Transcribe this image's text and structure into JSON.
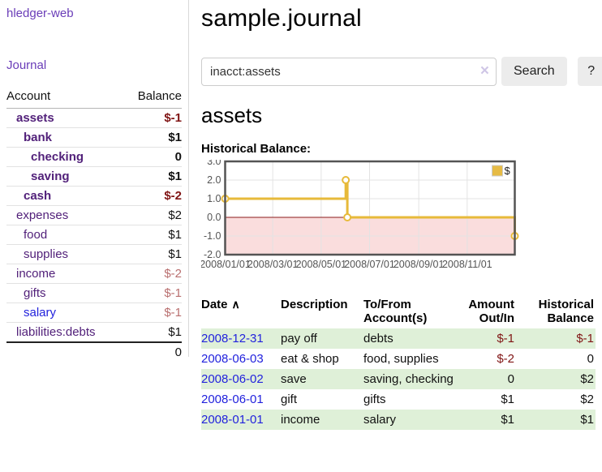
{
  "app": {
    "brand": "hledger-web",
    "nav": {
      "journal_label": "Journal"
    }
  },
  "sidebar": {
    "table_headers": {
      "account": "Account",
      "balance": "Balance"
    },
    "accounts": [
      {
        "name": "assets",
        "depth": 0,
        "bold": true,
        "balance": "$-1",
        "balance_style": "neg-strong"
      },
      {
        "name": "bank",
        "depth": 1,
        "bold": true,
        "balance": "$1",
        "balance_style": "pos"
      },
      {
        "name": "checking",
        "depth": 2,
        "bold": true,
        "balance": "0",
        "balance_style": "pos"
      },
      {
        "name": "saving",
        "depth": 2,
        "bold": true,
        "balance": "$1",
        "balance_style": "pos"
      },
      {
        "name": "cash",
        "depth": 1,
        "bold": true,
        "balance": "$-2",
        "balance_style": "neg-strong"
      },
      {
        "name": "expenses",
        "depth": 0,
        "bold": false,
        "balance": "$2",
        "balance_style": "pos"
      },
      {
        "name": "food",
        "depth": 1,
        "bold": false,
        "balance": "$1",
        "balance_style": "pos"
      },
      {
        "name": "supplies",
        "depth": 1,
        "bold": false,
        "balance": "$1",
        "balance_style": "pos"
      },
      {
        "name": "income",
        "depth": 0,
        "bold": false,
        "balance": "$-2",
        "balance_style": "neg-soft"
      },
      {
        "name": "gifts",
        "depth": 1,
        "bold": false,
        "balance": "$-1",
        "balance_style": "neg-soft"
      },
      {
        "name": "salary",
        "depth": 1,
        "bold": false,
        "balance": "$-1",
        "balance_style": "neg-soft",
        "link_style": "blue"
      },
      {
        "name": "liabilities:debts",
        "depth": 0,
        "bold": false,
        "balance": "$1",
        "balance_style": "pos"
      }
    ],
    "total": "0"
  },
  "main": {
    "title": "sample.journal",
    "search": {
      "value": "inacct:assets",
      "clear_icon": "×",
      "button_label": "Search",
      "help_label": "?"
    },
    "account_heading": "assets",
    "chart_heading": "Historical Balance:"
  },
  "chart_data": {
    "type": "line",
    "step": true,
    "title": "Historical Balance",
    "series": [
      {
        "name": "$",
        "points": [
          [
            "2008-01-01",
            1
          ],
          [
            "2008-06-01",
            2
          ],
          [
            "2008-06-03",
            0
          ],
          [
            "2008-12-31",
            -1
          ]
        ]
      }
    ],
    "x_range": [
      "2008-01-01",
      "2008-12-31"
    ],
    "ylim": [
      -2,
      3
    ],
    "y_ticks": [
      "3.0",
      "2.0",
      "1.0",
      "0.0",
      "-1.0",
      "-2.0"
    ],
    "x_ticks": [
      "2008/01/01",
      "2008/03/01",
      "2008/05/01",
      "2008/07/01",
      "2008/09/01",
      "2008/11/01"
    ],
    "legend": {
      "label": "$",
      "position": "top-right"
    },
    "grid": true,
    "colors": {
      "line": "#e7ba3a",
      "marker_fill": "#ffffff",
      "legend_swatch": "#e6bb45",
      "negative_fill": "#fadddd",
      "zero_line": "#8b1a1a",
      "grid": "#e3e3e3",
      "border": "#545454",
      "tick_text": "#545454"
    }
  },
  "register": {
    "headers": {
      "date": "Date",
      "sort_indicator": "∧",
      "description": "Description",
      "accounts": "To/From Account(s)",
      "amount": "Amount Out/In",
      "balance": "Historical Balance"
    },
    "rows": [
      {
        "date": "2008-12-31",
        "description": "pay off",
        "accounts": "debts",
        "amount": "$-1",
        "amount_neg": true,
        "balance": "$-1",
        "balance_neg": true,
        "green": true
      },
      {
        "date": "2008-06-03",
        "description": "eat & shop",
        "accounts": "food, supplies",
        "amount": "$-2",
        "amount_neg": true,
        "balance": "0",
        "balance_neg": false,
        "green": false
      },
      {
        "date": "2008-06-02",
        "description": "save",
        "accounts": "saving, checking",
        "amount": "0",
        "amount_neg": false,
        "balance": "$2",
        "balance_neg": false,
        "green": true
      },
      {
        "date": "2008-06-01",
        "description": "gift",
        "accounts": "gifts",
        "amount": "$1",
        "amount_neg": false,
        "balance": "$2",
        "balance_neg": false,
        "green": false
      },
      {
        "date": "2008-01-01",
        "description": "income",
        "accounts": "salary",
        "amount": "$1",
        "amount_neg": false,
        "balance": "$1",
        "balance_neg": false,
        "green": true
      }
    ]
  },
  "colors": {
    "brand_purple": "#6a3db8",
    "account_link_purple": "#52217a",
    "link_blue": "#2222dd",
    "negative_strong": "#801515",
    "negative_soft": "#b96f6f",
    "row_green": "#dff0d8",
    "button_gray": "#ececec"
  }
}
